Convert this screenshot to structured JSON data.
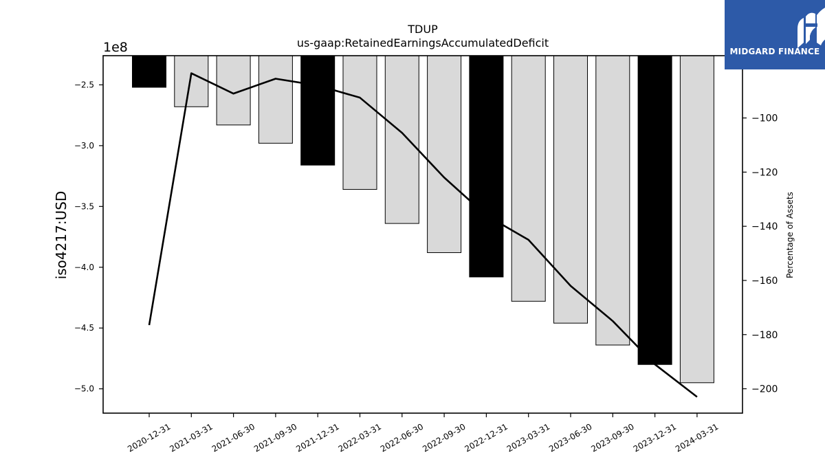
{
  "brand": {
    "name": "MIDGARD FINANCE",
    "bg_color": "#2d5aa8"
  },
  "chart_data": {
    "type": "bar",
    "title": "TDUP",
    "subtitle": "us-gaap:RetainedEarningsAccumulatedDeficit",
    "ylabel": "iso4217:USD",
    "ylabel_right": "Percentage of Assets",
    "y_offset_label": "1e8",
    "categories": [
      "2020-12-31",
      "2021-03-31",
      "2021-06-30",
      "2021-09-30",
      "2021-12-31",
      "2022-03-31",
      "2022-06-30",
      "2022-09-30",
      "2022-12-31",
      "2023-03-31",
      "2023-06-30",
      "2023-09-30",
      "2023-12-31",
      "2024-03-31"
    ],
    "values": [
      -2.52,
      -2.68,
      -2.83,
      -2.98,
      -3.16,
      -3.36,
      -3.64,
      -3.88,
      -4.08,
      -4.28,
      -4.46,
      -4.64,
      -4.8,
      -4.95
    ],
    "annual_flags": [
      true,
      false,
      false,
      false,
      true,
      false,
      false,
      false,
      true,
      false,
      false,
      false,
      true,
      false
    ],
    "bar_colors": {
      "annual": "#000000",
      "quarterly": "#d9d9d9"
    },
    "ylim": [
      -5.2,
      -2.26
    ],
    "yticks": [
      -2.5,
      -3.0,
      -3.5,
      -4.0,
      -4.5,
      -5.0
    ],
    "ytick_labels": [
      "−2.5",
      "−3.0",
      "−3.5",
      "−4.0",
      "−4.5",
      "−5.0"
    ],
    "series_right": {
      "values": [
        -176.5,
        -83.5,
        -91.0,
        -85.5,
        -88.0,
        -92.5,
        -105.5,
        -122.0,
        -136.0,
        -145.0,
        -162.0,
        -175.0,
        -191.0,
        -203.0
      ],
      "ylim": [
        -209,
        -77
      ],
      "yticks": [
        -100,
        -120,
        -140,
        -160,
        -180,
        -200
      ],
      "ytick_labels": [
        "−100",
        "−120",
        "−140",
        "−160",
        "−180",
        "−200"
      ],
      "color": "#000000"
    },
    "grid": false,
    "legend": "none"
  }
}
